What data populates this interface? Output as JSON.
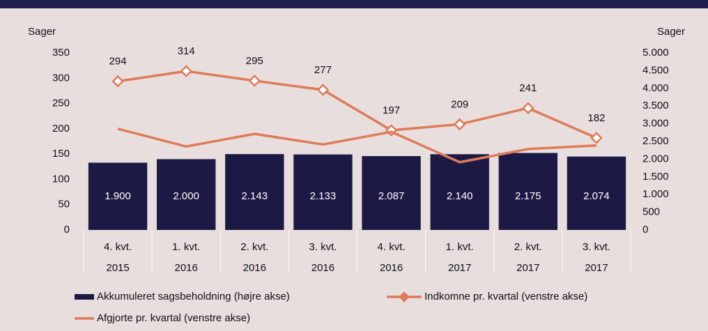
{
  "chart_data": {
    "type": "bar-line",
    "y_label": "Sager",
    "y2_label": "Sager",
    "categories": [
      [
        "4. kvt.",
        "2015"
      ],
      [
        "1. kvt.",
        "2016"
      ],
      [
        "2. kvt.",
        "2016"
      ],
      [
        "3. kvt.",
        "2016"
      ],
      [
        "4. kvt.",
        "2016"
      ],
      [
        "1. kvt.",
        "2017"
      ],
      [
        "2. kvt.",
        "2017"
      ],
      [
        "3. kvt.",
        "2017"
      ]
    ],
    "series": [
      {
        "name": "Akkumuleret sagsbeholdning (højre akse)",
        "type": "bar",
        "axis": "y2",
        "color": "#1c1a45",
        "values": [
          1900,
          2000,
          2143,
          2133,
          2087,
          2140,
          2175,
          2074
        ],
        "value_labels": [
          "1.900",
          "2.000",
          "2.143",
          "2.133",
          "2.087",
          "2.140",
          "2.175",
          "2.074"
        ]
      },
      {
        "name": "Indkomne pr. kvartal (venstre akse)",
        "type": "line",
        "marker": "diamond",
        "color": "#de7b59",
        "values": [
          294,
          314,
          295,
          277,
          197,
          209,
          241,
          182
        ]
      },
      {
        "name": "Afgjorte pr. kvartal (venstre akse)",
        "type": "line",
        "color": "#de7b59",
        "values": [
          200,
          165,
          190,
          169,
          194,
          134,
          160,
          167
        ]
      }
    ],
    "ylim": [
      0,
      350
    ],
    "yticks": [
      0,
      50,
      100,
      150,
      200,
      250,
      300,
      350
    ],
    "y2lim": [
      0,
      5000
    ],
    "y2ticks": [
      0,
      500,
      {
        "value": 1000,
        "label": "1.000"
      },
      {
        "value": 1500,
        "label": "1.500"
      },
      {
        "value": 2000,
        "label": "2.000"
      },
      {
        "value": 2500,
        "label": "2.500"
      },
      {
        "value": 3000,
        "label": "3.000"
      },
      {
        "value": 3500,
        "label": "3.500"
      },
      {
        "value": 4000,
        "label": "4.000"
      },
      {
        "value": 4500,
        "label": "4.500"
      },
      {
        "value": 5000,
        "label": "5.000"
      }
    ]
  }
}
